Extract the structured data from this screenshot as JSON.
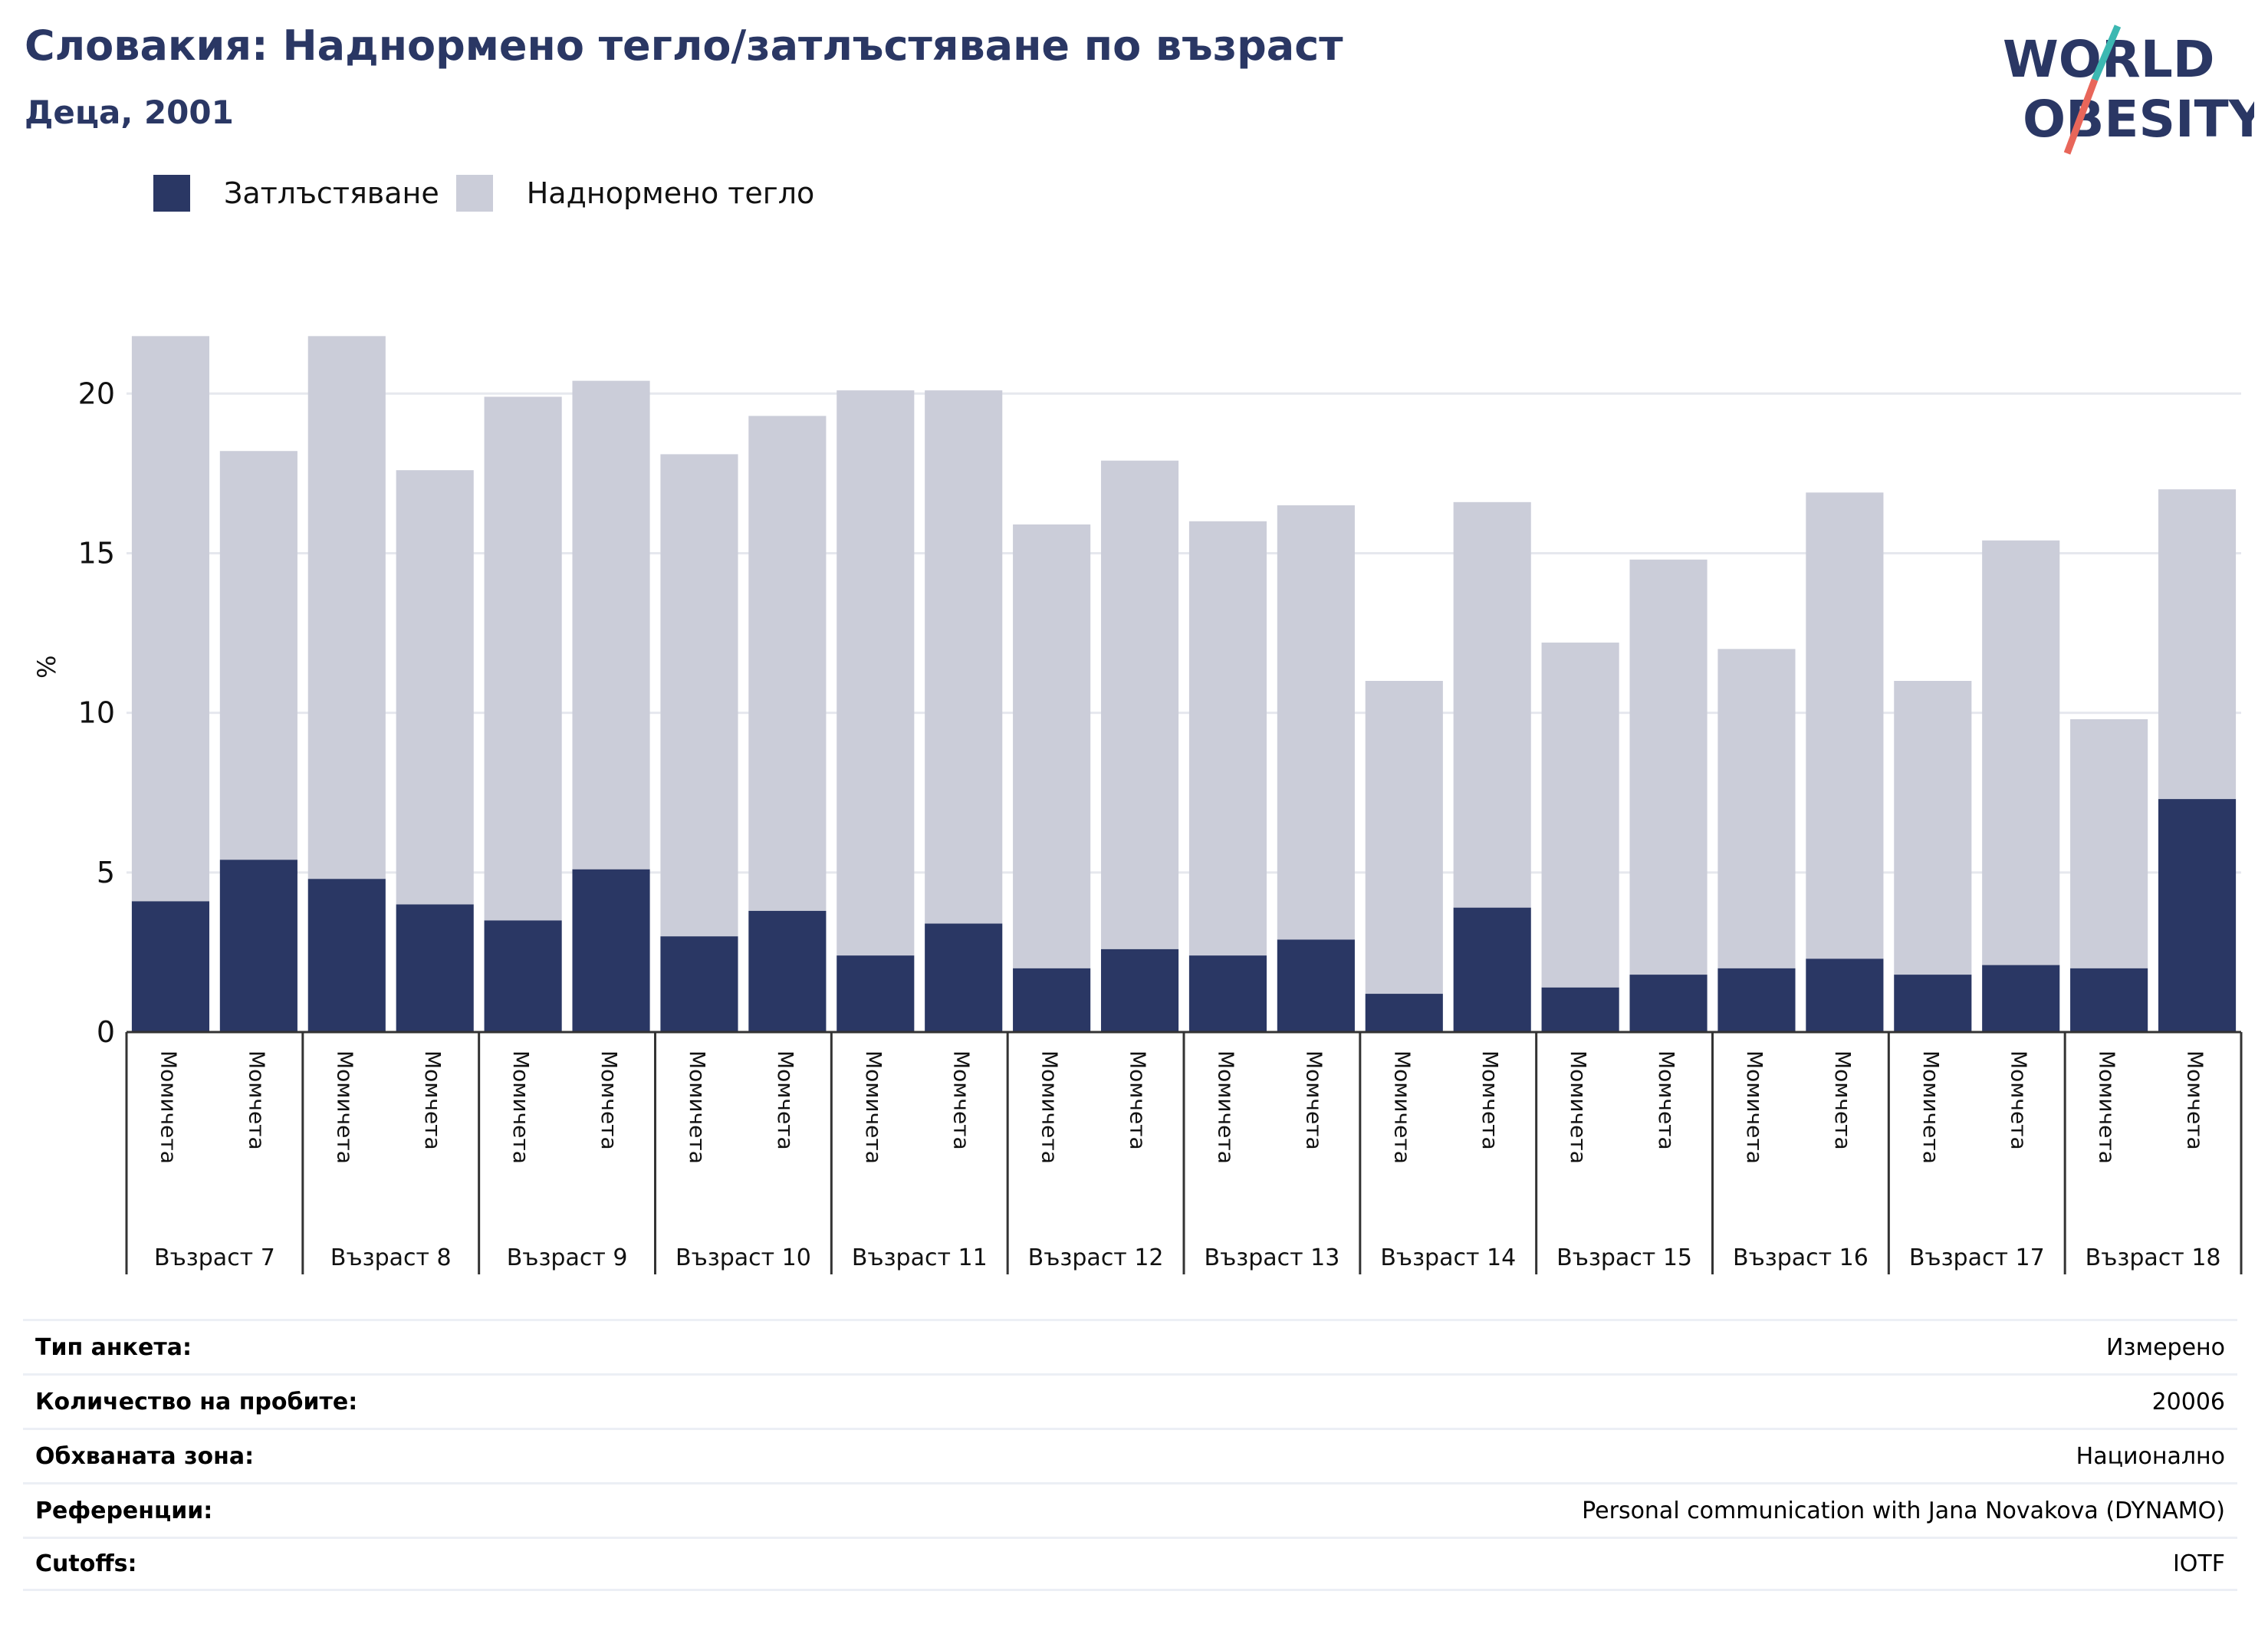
{
  "header": {
    "title": "Словакия: Наднормено тегло/затлъстяване по възраст",
    "subtitle": "Деца, 2001"
  },
  "logo": {
    "line1": "WORLD",
    "line2": "OBESITY",
    "text_color": "#2a3764",
    "slash_colors": [
      "#3cb8b2",
      "#e8665a"
    ]
  },
  "colors": {
    "obesity": "#2a3764",
    "overweight": "#cbcdd9",
    "grid": "#e6e8ee"
  },
  "chart_data": {
    "type": "bar",
    "stacked": true,
    "ylabel": "%",
    "ylim": [
      0,
      22
    ],
    "yticks": [
      0,
      5,
      10,
      15,
      20
    ],
    "grid": true,
    "legend_position": "top-left",
    "groups": [
      "Възраст 7",
      "Възраст 8",
      "Възраст 9",
      "Възраст 10",
      "Възраст 11",
      "Възраст 12",
      "Възраст 13",
      "Възраст 14",
      "Възраст 15",
      "Възраст 16",
      "Възраст 17",
      "Възраст 18"
    ],
    "subcategories": [
      "Момичета",
      "Момчета"
    ],
    "series": [
      {
        "name": "Затлъстяване",
        "color": "#2a3764",
        "values": [
          4.1,
          5.4,
          4.8,
          4.0,
          3.5,
          5.1,
          3.0,
          3.8,
          2.4,
          3.4,
          2.0,
          2.6,
          2.4,
          2.9,
          1.2,
          3.9,
          1.4,
          1.8,
          2.0,
          2.3,
          1.8,
          2.1,
          2.0,
          7.3
        ]
      },
      {
        "name": "Наднормено тегло",
        "color": "#cbcdd9",
        "values": [
          17.7,
          12.8,
          17.0,
          13.6,
          16.4,
          15.3,
          15.1,
          15.5,
          17.7,
          16.7,
          13.9,
          15.3,
          13.6,
          13.6,
          9.8,
          12.7,
          10.8,
          13.0,
          10.0,
          14.6,
          9.2,
          13.3,
          7.8,
          9.7
        ]
      }
    ]
  },
  "meta": [
    {
      "label": "Тип анкета:",
      "value": "Измерено"
    },
    {
      "label": "Количество на пробите:",
      "value": "20006"
    },
    {
      "label": "Обхваната зона:",
      "value": "Национално"
    },
    {
      "label": "Референции:",
      "value": "Personal communication with Jana Novakova (DYNAMO)"
    },
    {
      "label": "Cutoffs:",
      "value": "IOTF"
    }
  ]
}
